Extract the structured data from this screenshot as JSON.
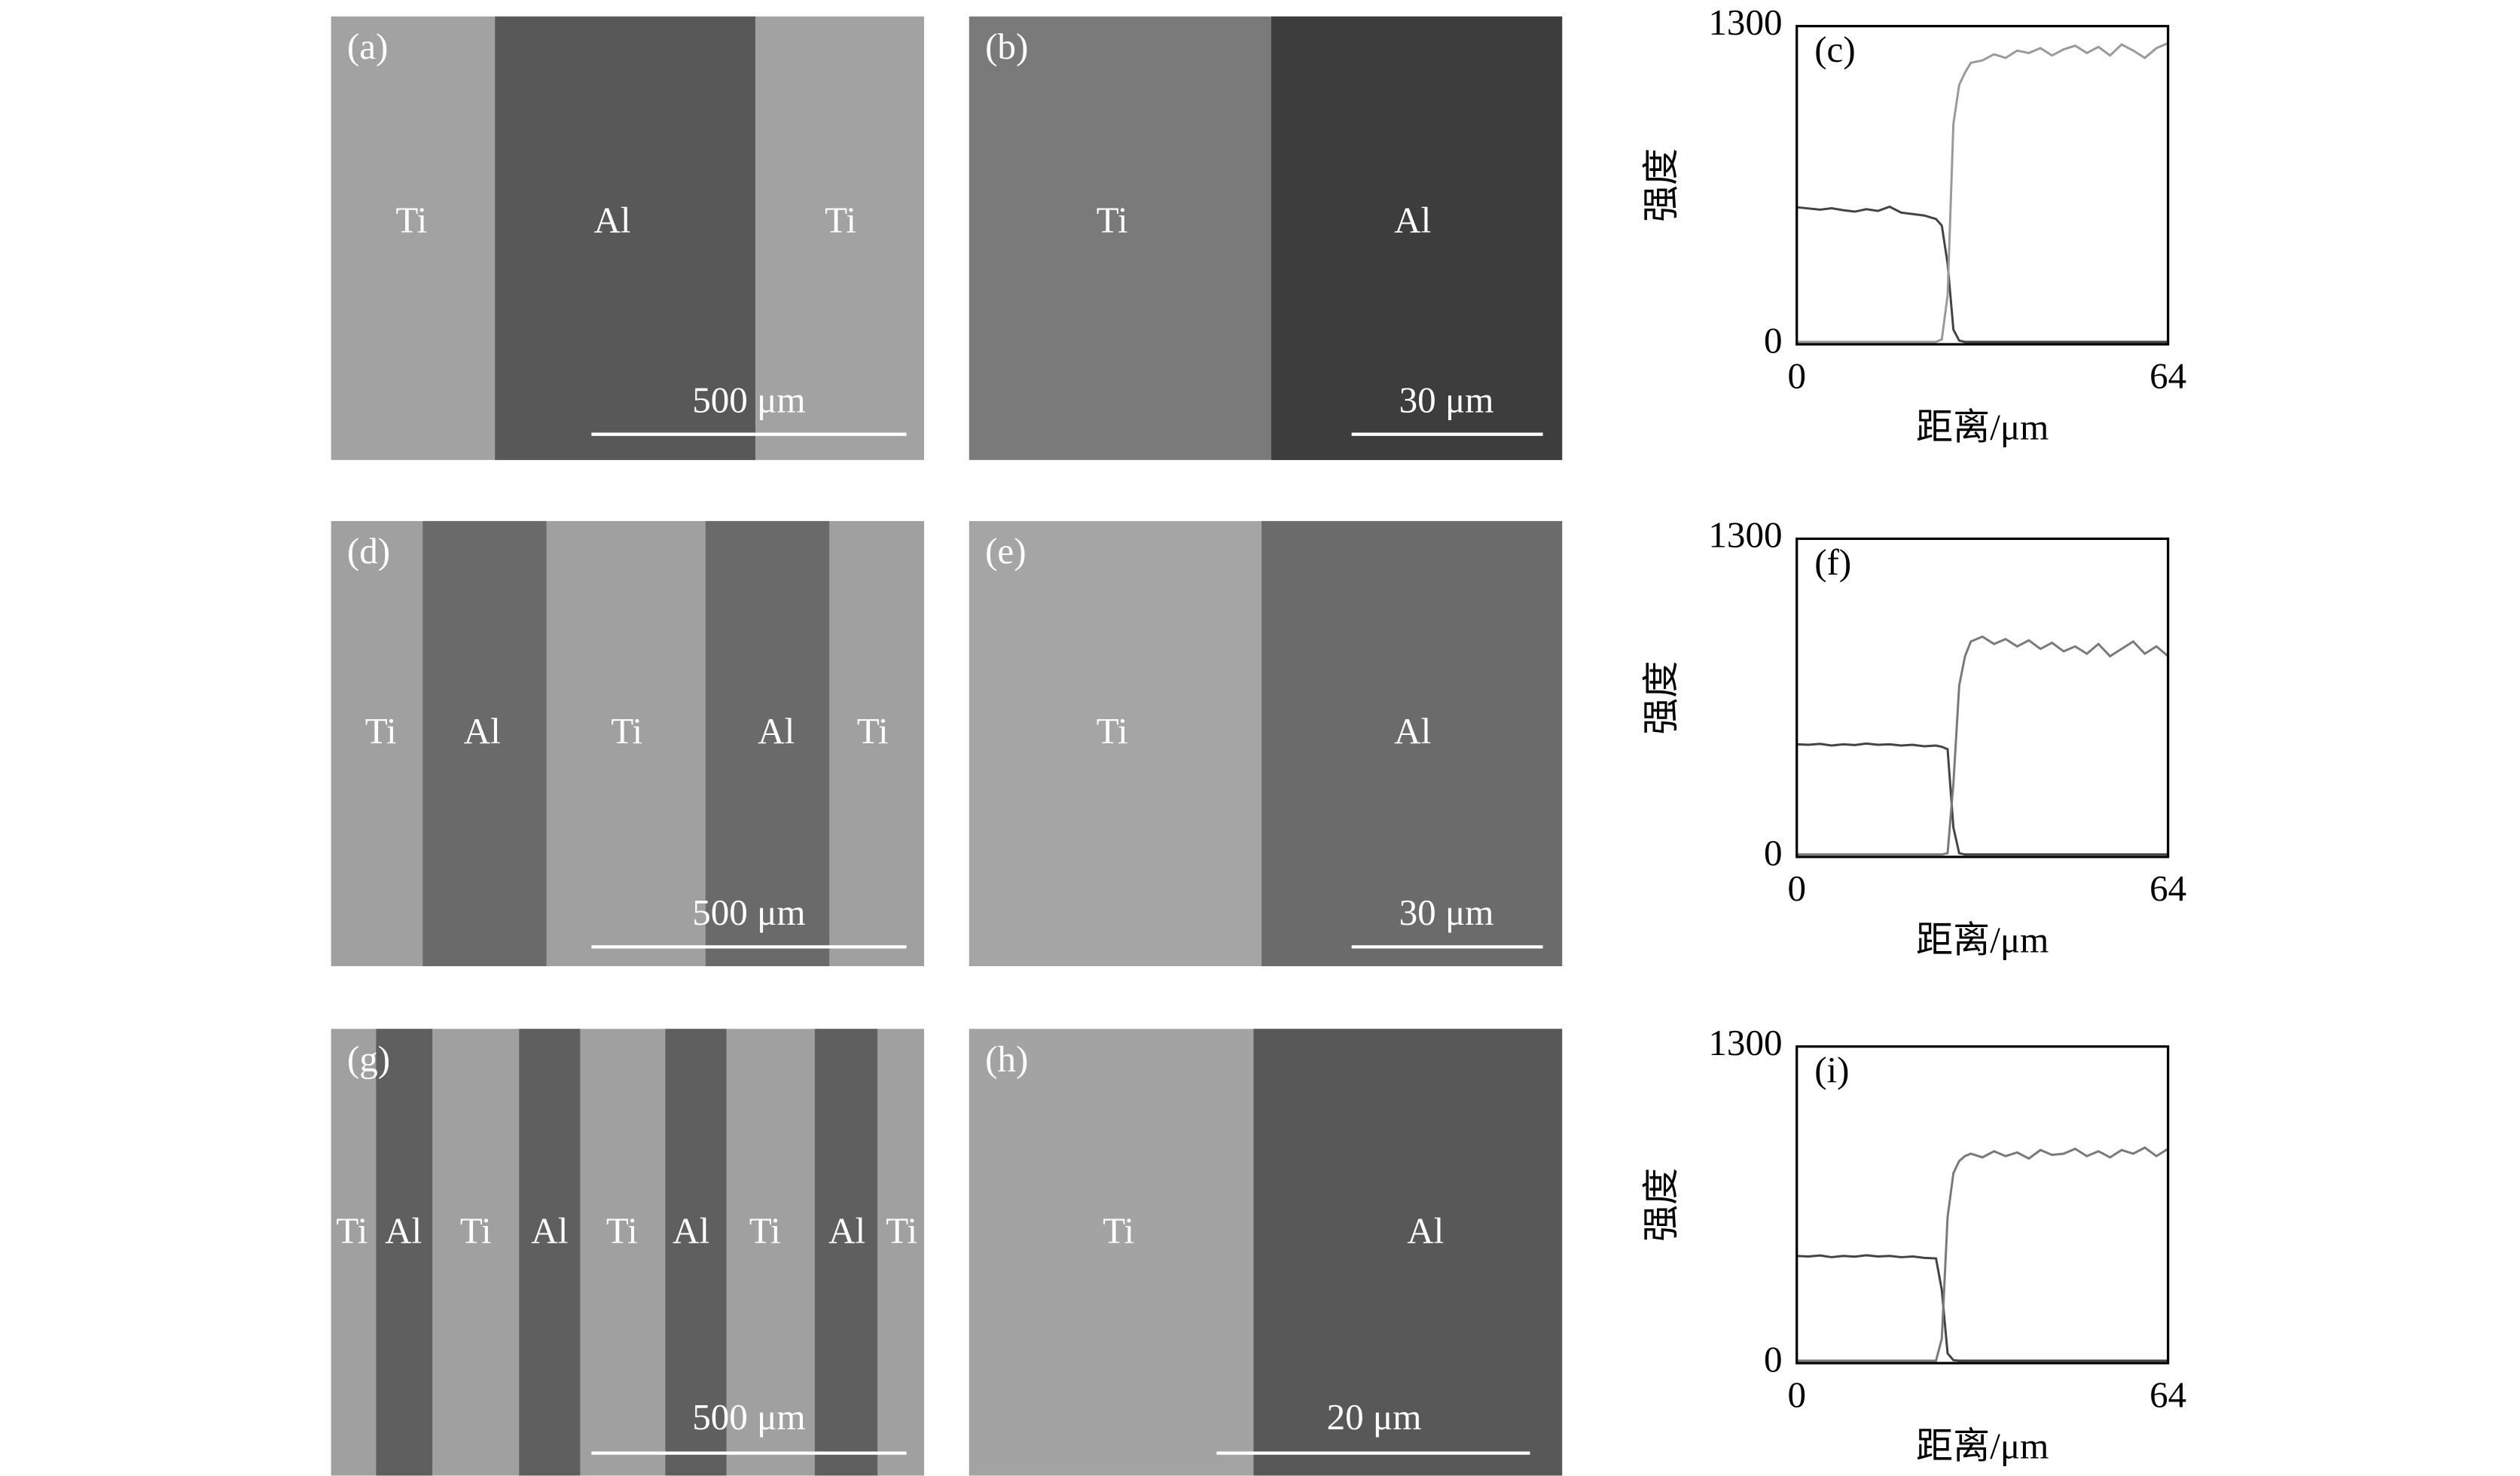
{
  "figure": {
    "panels": [
      {
        "label": "(a)",
        "regions": [
          "Ti",
          "Al",
          "Ti"
        ],
        "scale_bar": "500 μm"
      },
      {
        "label": "(b)",
        "regions": [
          "Ti",
          "Al"
        ],
        "scale_bar": "30 μm"
      },
      {
        "label": "(d)",
        "regions": [
          "Ti",
          "Al",
          "Ti",
          "Al",
          "Ti"
        ],
        "scale_bar": "500 μm"
      },
      {
        "label": "(e)",
        "regions": [
          "Ti",
          "Al"
        ],
        "scale_bar": "30 μm"
      },
      {
        "label": "(g)",
        "regions": [
          "Ti",
          "Al",
          "Ti",
          "Al",
          "Ti",
          "Al",
          "Ti",
          "Al",
          "Ti"
        ],
        "scale_bar": "500 μm"
      },
      {
        "label": "(h)",
        "regions": [
          "Ti",
          "Al"
        ],
        "scale_bar": "20 μm"
      }
    ]
  },
  "chart_data": [
    {
      "type": "line",
      "title": "(c)",
      "xlabel": "距离/μm",
      "ylabel": "强度",
      "xlim": [
        0,
        64
      ],
      "xticks": [
        0,
        64
      ],
      "ylim": [
        0,
        1300
      ],
      "yticks": [
        0,
        1300
      ],
      "x": [
        0,
        2,
        4,
        6,
        8,
        10,
        12,
        14,
        16,
        18,
        20,
        22,
        24,
        25,
        26,
        27,
        28,
        29,
        30,
        32,
        34,
        36,
        38,
        40,
        42,
        44,
        46,
        48,
        50,
        52,
        54,
        56,
        58,
        60,
        62,
        64
      ],
      "series": [
        {
          "color": "#444444",
          "values": [
            560,
            555,
            550,
            556,
            548,
            542,
            552,
            545,
            562,
            538,
            532,
            526,
            512,
            485,
            330,
            60,
            15,
            10,
            10,
            10,
            10,
            10,
            10,
            10,
            10,
            10,
            10,
            10,
            10,
            10,
            10,
            10,
            10,
            10,
            10,
            10
          ]
        },
        {
          "color": "#9a9a9a",
          "values": [
            10,
            10,
            10,
            10,
            10,
            10,
            10,
            10,
            10,
            10,
            10,
            10,
            10,
            20,
            200,
            900,
            1060,
            1110,
            1150,
            1160,
            1185,
            1170,
            1200,
            1190,
            1210,
            1180,
            1205,
            1220,
            1190,
            1215,
            1180,
            1225,
            1200,
            1170,
            1210,
            1230
          ]
        }
      ]
    },
    {
      "type": "line",
      "title": "(f)",
      "xlabel": "距离/μm",
      "ylabel": "强度",
      "xlim": [
        0,
        64
      ],
      "xticks": [
        0,
        64
      ],
      "ylim": [
        0,
        1300
      ],
      "yticks": [
        0,
        1300
      ],
      "x": [
        0,
        2,
        4,
        6,
        8,
        10,
        12,
        14,
        16,
        18,
        20,
        22,
        24,
        25,
        26,
        27,
        28,
        29,
        30,
        32,
        34,
        36,
        38,
        40,
        42,
        44,
        46,
        48,
        50,
        52,
        54,
        56,
        58,
        60,
        62,
        64
      ],
      "series": [
        {
          "color": "#444444",
          "values": [
            460,
            458,
            462,
            455,
            460,
            457,
            463,
            458,
            460,
            455,
            458,
            452,
            455,
            450,
            440,
            120,
            15,
            10,
            10,
            10,
            10,
            10,
            10,
            10,
            10,
            10,
            10,
            10,
            10,
            10,
            10,
            10,
            10,
            10,
            10,
            10
          ]
        },
        {
          "color": "#7a7a7a",
          "values": [
            10,
            10,
            10,
            10,
            10,
            10,
            10,
            10,
            10,
            10,
            10,
            10,
            10,
            10,
            15,
            300,
            700,
            820,
            880,
            900,
            870,
            890,
            860,
            885,
            850,
            875,
            840,
            860,
            830,
            870,
            820,
            850,
            880,
            830,
            860,
            820
          ]
        }
      ]
    },
    {
      "type": "line",
      "title": "(i)",
      "xlabel": "距离/μm",
      "ylabel": "强度",
      "xlim": [
        0,
        64
      ],
      "xticks": [
        0,
        64
      ],
      "ylim": [
        0,
        1300
      ],
      "yticks": [
        0,
        1300
      ],
      "x": [
        0,
        2,
        4,
        6,
        8,
        10,
        12,
        14,
        16,
        18,
        20,
        22,
        24,
        25,
        26,
        27,
        28,
        29,
        30,
        32,
        34,
        36,
        38,
        40,
        42,
        44,
        46,
        48,
        50,
        52,
        54,
        56,
        58,
        60,
        62,
        64
      ],
      "series": [
        {
          "color": "#444444",
          "values": [
            440,
            438,
            442,
            435,
            440,
            437,
            443,
            438,
            440,
            435,
            438,
            432,
            430,
            300,
            40,
            12,
            10,
            10,
            10,
            10,
            10,
            10,
            10,
            10,
            10,
            10,
            10,
            10,
            10,
            10,
            10,
            10,
            10,
            10,
            10,
            10
          ]
        },
        {
          "color": "#7a7a7a",
          "values": [
            10,
            10,
            10,
            10,
            10,
            10,
            10,
            10,
            10,
            10,
            10,
            10,
            10,
            100,
            600,
            780,
            830,
            850,
            860,
            845,
            870,
            850,
            865,
            840,
            875,
            855,
            860,
            880,
            850,
            870,
            845,
            875,
            860,
            885,
            850,
            880
          ]
        }
      ]
    }
  ]
}
